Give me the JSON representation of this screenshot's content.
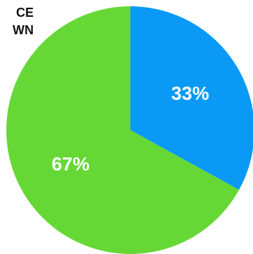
{
  "chart_data": {
    "type": "pie",
    "title_lines": [
      "CE",
      "WN"
    ],
    "categories": [
      null,
      null
    ],
    "values": [
      33,
      67
    ],
    "value_labels": [
      "33%",
      "67%"
    ],
    "colors": [
      "#0a9af5",
      "#66d836"
    ]
  }
}
